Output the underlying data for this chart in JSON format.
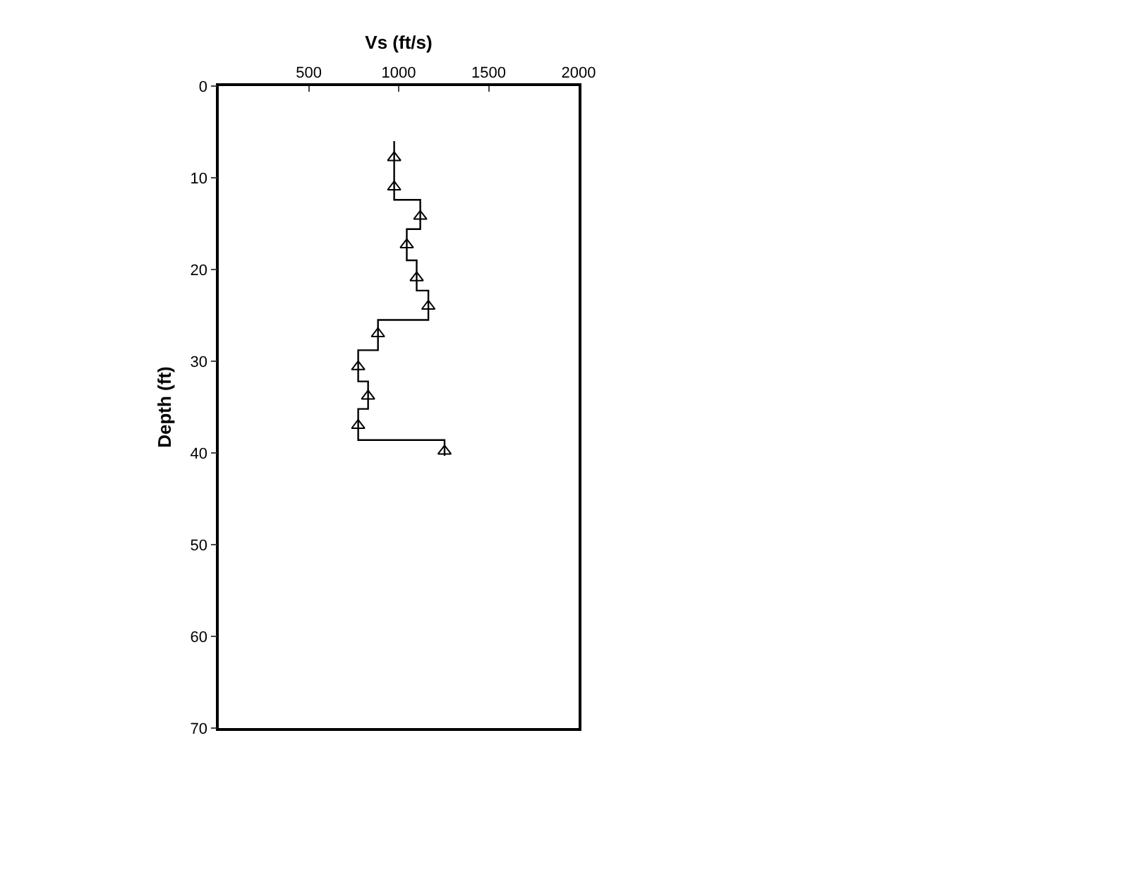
{
  "chart_data": {
    "type": "line",
    "xlabel": "Vs (ft/s)",
    "ylabel": "Depth (ft)",
    "xlim": [
      0,
      2000
    ],
    "xticks": [
      500,
      1000,
      1500,
      2000
    ],
    "ylim": [
      70,
      0
    ],
    "yticks": [
      0,
      10,
      20,
      30,
      40,
      50,
      60,
      70
    ],
    "series": [
      {
        "color": "#000000",
        "marker": "none",
        "line_style": "solid",
        "x": [
          975,
          975,
          1120,
          1120,
          1045,
          1045,
          1100,
          1100,
          1165,
          1165,
          885,
          885,
          775,
          775,
          830,
          830,
          775,
          775,
          1255,
          1255
        ],
        "values": [
          6,
          12.4,
          12.4,
          15.6,
          15.6,
          19,
          19,
          22.3,
          22.3,
          25.5,
          25.5,
          28.8,
          28.8,
          32.2,
          32.2,
          35.2,
          35.2,
          38.6,
          38.6,
          40.3
        ]
      },
      {
        "type": "scatter",
        "color": "#000000",
        "marker": "triangle",
        "x": [
          975,
          975,
          1120,
          1045,
          1100,
          1165,
          885,
          775,
          830,
          775,
          1255
        ],
        "values": [
          7.8,
          11,
          14.2,
          17.3,
          20.9,
          24,
          27,
          30.6,
          33.8,
          37,
          39.8
        ]
      }
    ]
  }
}
